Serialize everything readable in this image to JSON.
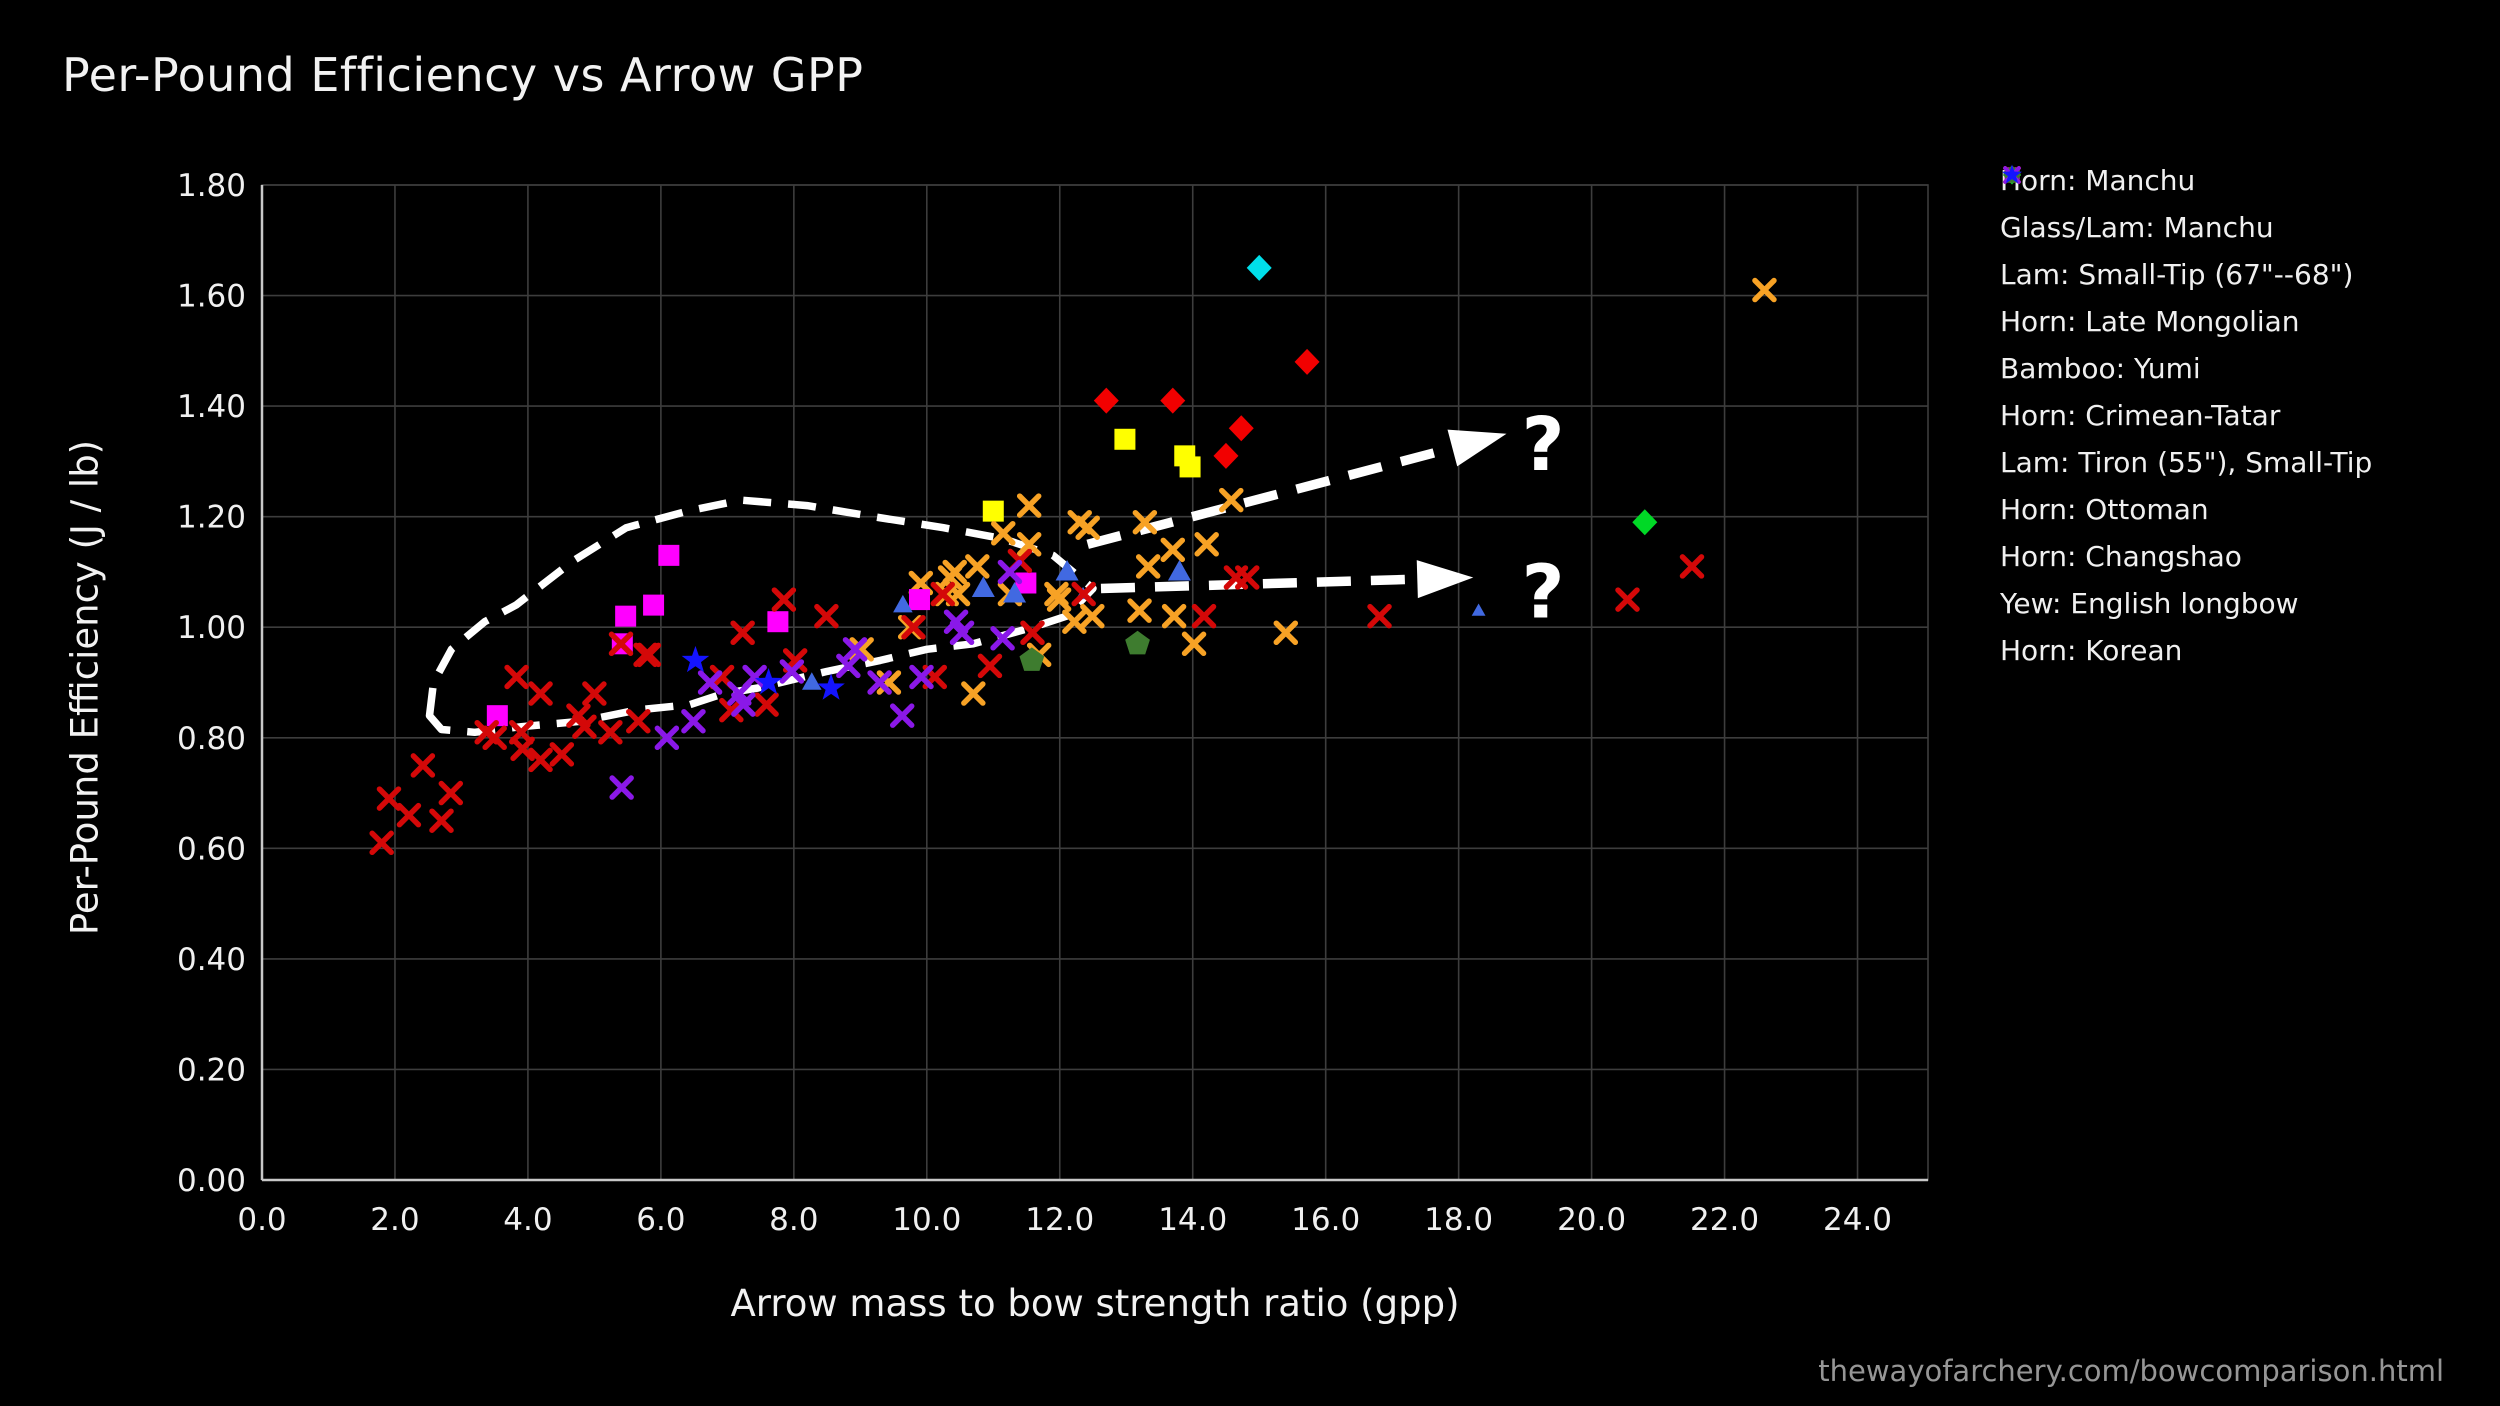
{
  "footer": {
    "text": "thewayofarchery.com/bowcomparison.html"
  },
  "chart_data": {
    "type": "scatter",
    "title": "Per-Pound Efficiency vs Arrow GPP",
    "xlabel": "Arrow mass to bow strength ratio (gpp)",
    "ylabel": "Per-Pound Efficiency (J / lb)",
    "xlim": [
      0,
      25.06
    ],
    "ylim": [
      0,
      1.8
    ],
    "xticks": [
      0,
      2,
      4,
      6,
      8,
      10,
      12,
      14,
      16,
      18,
      20,
      22,
      24
    ],
    "yticks": [
      0,
      0.2,
      0.4,
      0.6,
      0.8,
      1.0,
      1.2,
      1.4,
      1.6,
      1.8
    ],
    "grid": true,
    "legend_position": "right",
    "axis_style": {
      "grid_color": "#3d3d3d",
      "spine_color": "#c8c8c8",
      "text_color": "#f0f0f0",
      "background": "#000000"
    },
    "annotation_color": "#ffffff",
    "series": [
      {
        "name": "Horn: Manchu",
        "marker": "diamond",
        "color": "#00dfea",
        "points": [
          [
            15.0,
            1.65
          ]
        ]
      },
      {
        "name": "Glass/Lam: Manchu",
        "marker": "diamond",
        "color": "#f20000",
        "points": [
          [
            12.7,
            1.41
          ],
          [
            13.7,
            1.41
          ],
          [
            14.5,
            1.31
          ],
          [
            14.73,
            1.36
          ],
          [
            15.72,
            1.48
          ]
        ]
      },
      {
        "name": "Lam: Small-Tip (67\"--68\")",
        "marker": "square",
        "color": "#ffff00",
        "points": [
          [
            11.0,
            1.21
          ],
          [
            12.98,
            1.34
          ],
          [
            13.88,
            1.31
          ],
          [
            13.96,
            1.29
          ]
        ]
      },
      {
        "name": "Horn: Late Mongolian",
        "marker": "diamond",
        "color": "#00d926",
        "points": [
          [
            20.8,
            1.19
          ]
        ]
      },
      {
        "name": "Bamboo: Yumi",
        "marker": "x",
        "color": "#f7a225",
        "points": [
          [
            22.6,
            1.61
          ],
          [
            14.58,
            1.23
          ],
          [
            13.28,
            1.19
          ],
          [
            12.3,
            1.19
          ],
          [
            12.42,
            1.18
          ],
          [
            11.54,
            1.22
          ],
          [
            11.15,
            1.17
          ],
          [
            11.54,
            1.15
          ],
          [
            13.7,
            1.14
          ],
          [
            14.21,
            1.15
          ],
          [
            13.33,
            1.11
          ],
          [
            10.76,
            1.11
          ],
          [
            10.42,
            1.1
          ],
          [
            10.35,
            1.09
          ],
          [
            9.91,
            1.08
          ],
          [
            10.47,
            1.06
          ],
          [
            10.3,
            1.06
          ],
          [
            11.25,
            1.06
          ],
          [
            11.95,
            1.06
          ],
          [
            11.99,
            1.05
          ],
          [
            12.49,
            1.02
          ],
          [
            12.22,
            1.01
          ],
          [
            13.2,
            1.03
          ],
          [
            13.72,
            1.02
          ],
          [
            14.02,
            0.97
          ],
          [
            15.4,
            0.99
          ],
          [
            11.69,
            0.95
          ],
          [
            10.7,
            0.88
          ],
          [
            9.43,
            0.9
          ],
          [
            9.02,
            0.96
          ],
          [
            9.75,
            1.0
          ]
        ]
      },
      {
        "name": "Horn: Crimean-Tatar",
        "marker": "square",
        "color": "#ff00ff",
        "points": [
          [
            3.54,
            0.84
          ],
          [
            5.47,
            1.02
          ],
          [
            5.89,
            1.04
          ],
          [
            6.12,
            1.13
          ],
          [
            5.42,
            0.97
          ],
          [
            7.76,
            1.01
          ],
          [
            9.89,
            1.05
          ],
          [
            11.49,
            1.08
          ]
        ]
      },
      {
        "name": "Lam: Tiron (55\"), Small-Tip",
        "marker": "triangle",
        "color": "#4169e1",
        "points": [
          [
            8.27,
            0.9,
            0.85
          ],
          [
            9.64,
            1.04,
            0.85
          ],
          [
            10.85,
            1.07,
            1
          ],
          [
            11.32,
            1.06,
            1
          ],
          [
            12.11,
            1.1,
            1
          ],
          [
            12.35,
            1.06,
            0.6
          ],
          [
            13.8,
            1.1,
            1
          ],
          [
            18.3,
            1.03,
            0.6
          ]
        ]
      },
      {
        "name": "Horn: Ottoman",
        "marker": "x",
        "color": "#d40808",
        "points": [
          [
            1.8,
            0.61
          ],
          [
            1.91,
            0.69
          ],
          [
            2.21,
            0.66
          ],
          [
            2.42,
            0.75
          ],
          [
            2.7,
            0.65
          ],
          [
            2.84,
            0.7
          ],
          [
            3.38,
            0.81
          ],
          [
            3.5,
            0.8
          ],
          [
            3.83,
            0.91
          ],
          [
            3.9,
            0.81
          ],
          [
            3.92,
            0.78
          ],
          [
            4.19,
            0.88
          ],
          [
            4.19,
            0.76
          ],
          [
            4.51,
            0.77
          ],
          [
            4.76,
            0.84
          ],
          [
            4.85,
            0.82
          ],
          [
            5.0,
            0.88
          ],
          [
            5.24,
            0.81
          ],
          [
            5.4,
            0.97
          ],
          [
            5.66,
            0.83
          ],
          [
            5.77,
            0.95
          ],
          [
            5.82,
            0.95
          ],
          [
            6.92,
            0.91
          ],
          [
            7.06,
            0.85
          ],
          [
            7.23,
            0.99
          ],
          [
            7.59,
            0.86
          ],
          [
            7.85,
            1.05
          ],
          [
            8.02,
            0.94
          ],
          [
            8.49,
            1.02
          ],
          [
            9.8,
            1.0
          ],
          [
            10.12,
            0.91
          ],
          [
            10.24,
            1.06
          ],
          [
            10.95,
            0.93
          ],
          [
            11.4,
            1.12
          ],
          [
            11.59,
            0.99
          ],
          [
            12.36,
            1.06
          ],
          [
            14.17,
            1.02
          ],
          [
            14.65,
            1.09
          ],
          [
            14.82,
            1.09
          ],
          [
            16.81,
            1.02
          ],
          [
            20.54,
            1.05
          ],
          [
            21.51,
            1.11
          ]
        ]
      },
      {
        "name": "Horn: Changshao",
        "marker": "pentagon",
        "color": "#3e7c2f",
        "points": [
          [
            11.58,
            0.94
          ],
          [
            13.17,
            0.97
          ]
        ]
      },
      {
        "name": "Yew: English longbow",
        "marker": "x",
        "color": "#8a18e8",
        "points": [
          [
            5.41,
            0.71
          ],
          [
            6.09,
            0.8
          ],
          [
            6.49,
            0.83
          ],
          [
            6.74,
            0.9
          ],
          [
            7.18,
            0.88
          ],
          [
            7.24,
            0.86
          ],
          [
            7.41,
            0.91
          ],
          [
            7.97,
            0.92
          ],
          [
            8.82,
            0.93
          ],
          [
            8.92,
            0.96
          ],
          [
            9.29,
            0.9
          ],
          [
            9.63,
            0.84
          ],
          [
            9.92,
            0.91
          ],
          [
            10.44,
            1.01
          ],
          [
            10.53,
            0.99
          ],
          [
            11.14,
            0.98
          ],
          [
            11.25,
            1.1
          ]
        ]
      },
      {
        "name": "Horn: Korean",
        "marker": "star",
        "color": "#1414ff",
        "points": [
          [
            6.52,
            0.94
          ],
          [
            7.62,
            0.9
          ],
          [
            8.56,
            0.89
          ]
        ]
      }
    ],
    "annotations": {
      "ellipse_points": [
        [
          2.52,
          0.84
        ],
        [
          2.58,
          0.9
        ],
        [
          2.85,
          0.96
        ],
        [
          3.35,
          1.01
        ],
        [
          3.82,
          1.04
        ],
        [
          4.68,
          1.12
        ],
        [
          5.48,
          1.18
        ],
        [
          6.4,
          1.21
        ],
        [
          7.2,
          1.23
        ],
        [
          8.2,
          1.22
        ],
        [
          9.2,
          1.2
        ],
        [
          10.25,
          1.18
        ],
        [
          11.15,
          1.16
        ],
        [
          11.9,
          1.13
        ],
        [
          12.5,
          1.07
        ],
        [
          12.1,
          1.02
        ],
        [
          11.6,
          1.0
        ],
        [
          10.7,
          0.97
        ],
        [
          10.0,
          0.96
        ],
        [
          9.3,
          0.94
        ],
        [
          8.5,
          0.92
        ],
        [
          7.46,
          0.89
        ],
        [
          6.94,
          0.88
        ],
        [
          6.44,
          0.86
        ],
        [
          5.63,
          0.85
        ],
        [
          4.81,
          0.83
        ],
        [
          3.9,
          0.82
        ],
        [
          3.2,
          0.81
        ],
        [
          2.7,
          0.815
        ]
      ],
      "arrows": [
        {
          "from": [
            12.42,
            1.15
          ],
          "tip": [
            18.72,
            1.35
          ]
        },
        {
          "from": [
            12.62,
            1.07
          ],
          "tip": [
            18.22,
            1.09
          ]
        }
      ],
      "question_marks": [
        {
          "text": "?",
          "x": 19.27,
          "y": 1.284
        },
        {
          "text": "?",
          "x": 19.27,
          "y": 1.018
        }
      ]
    }
  }
}
